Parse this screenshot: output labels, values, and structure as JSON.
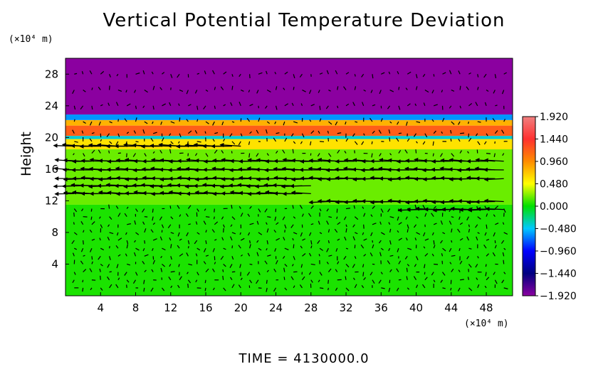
{
  "chart_data": {
    "type": "heatmap",
    "title": "Vertical Potential Temperature Deviation",
    "ylabel": "Height",
    "x_unit_label": "(×10⁴ m)",
    "y_unit_label": "(×10⁴ m)",
    "footer": "TIME  =  4130000.0",
    "xlim": [
      0,
      51
    ],
    "ylim": [
      0,
      30
    ],
    "x_ticks": [
      4,
      8,
      12,
      16,
      20,
      24,
      28,
      32,
      36,
      40,
      44,
      48
    ],
    "x_tick_labels": [
      "4",
      "8",
      "12",
      "16",
      "20",
      "24",
      "28",
      "32",
      "36",
      "40",
      "44",
      "48"
    ],
    "y_ticks": [
      4,
      8,
      12,
      16,
      20,
      24,
      28
    ],
    "y_tick_labels": [
      "4",
      "8",
      "12",
      "16",
      "20",
      "24",
      "28"
    ],
    "colorbar": {
      "range": [
        -1.92,
        1.92
      ],
      "ticks": [
        1.92,
        1.44,
        0.96,
        0.48,
        0.0,
        -0.48,
        -0.96,
        -1.44,
        -1.92
      ],
      "tick_labels": [
        "1.920",
        "1.440",
        "0.960",
        "0.480",
        "0.000",
        "−0.480",
        "−0.960",
        "−1.440",
        "−1.920"
      ],
      "colors": [
        "#f08080",
        "#ff3030",
        "#ff8c00",
        "#ffff00",
        "#00e000",
        "#00c8ff",
        "#0000ff",
        "#000080",
        "#8b00a0"
      ]
    },
    "field_layers": [
      {
        "y_from": 0,
        "y_to": 11.5,
        "value": 0.05
      },
      {
        "y_from": 11.5,
        "y_to": 18.5,
        "value": 0.2
      },
      {
        "y_from": 18.5,
        "y_to": 19.8,
        "value": 0.6
      },
      {
        "y_from": 19.8,
        "y_to": 20.2,
        "value": -0.4
      },
      {
        "y_from": 20.2,
        "y_to": 21.5,
        "value": 1.2
      },
      {
        "y_from": 21.5,
        "y_to": 22.2,
        "value": 0.8
      },
      {
        "y_from": 22.2,
        "y_to": 22.9,
        "value": -0.6
      },
      {
        "y_from": 22.9,
        "y_to": 30,
        "value": -1.92
      }
    ],
    "wind_vectors": {
      "strong_rows": [
        {
          "y": 18.9,
          "x_from": 1,
          "x_to": 20,
          "u": -3.2,
          "v": 0.1
        },
        {
          "y": 17.0,
          "x_from": 1,
          "x_to": 51,
          "u": -3.0,
          "v": 0.1
        },
        {
          "y": 15.9,
          "x_from": 1,
          "x_to": 51,
          "u": -3.1,
          "v": 0.1
        },
        {
          "y": 14.8,
          "x_from": 1,
          "x_to": 51,
          "u": -3.0,
          "v": 0.0
        },
        {
          "y": 13.9,
          "x_from": 1,
          "x_to": 28,
          "u": -3.2,
          "v": 0.0
        },
        {
          "y": 12.9,
          "x_from": 1,
          "x_to": 28,
          "u": -3.0,
          "v": 0.1
        },
        {
          "y": 11.9,
          "x_from": 30,
          "x_to": 51,
          "u": -3.0,
          "v": 0.0
        },
        {
          "y": 10.9,
          "x_from": 40,
          "x_to": 51,
          "u": -2.8,
          "v": 0.0
        }
      ],
      "weak_rows_y": [
        1,
        2,
        3,
        4,
        5,
        6,
        7,
        8,
        9,
        10,
        11,
        18,
        19.5,
        20.5,
        22,
        24,
        26,
        28
      ],
      "column_x": [
        1,
        2,
        3,
        4,
        5,
        6,
        7,
        8,
        9,
        10,
        11,
        12,
        13,
        14,
        15,
        16,
        17,
        18,
        19,
        20,
        21,
        22,
        23,
        24,
        25,
        26,
        27,
        28,
        29,
        30,
        31,
        32,
        33,
        34,
        35,
        36,
        37,
        38,
        39,
        40,
        41,
        42,
        43,
        44,
        45,
        46,
        47,
        48,
        49,
        50
      ]
    }
  }
}
